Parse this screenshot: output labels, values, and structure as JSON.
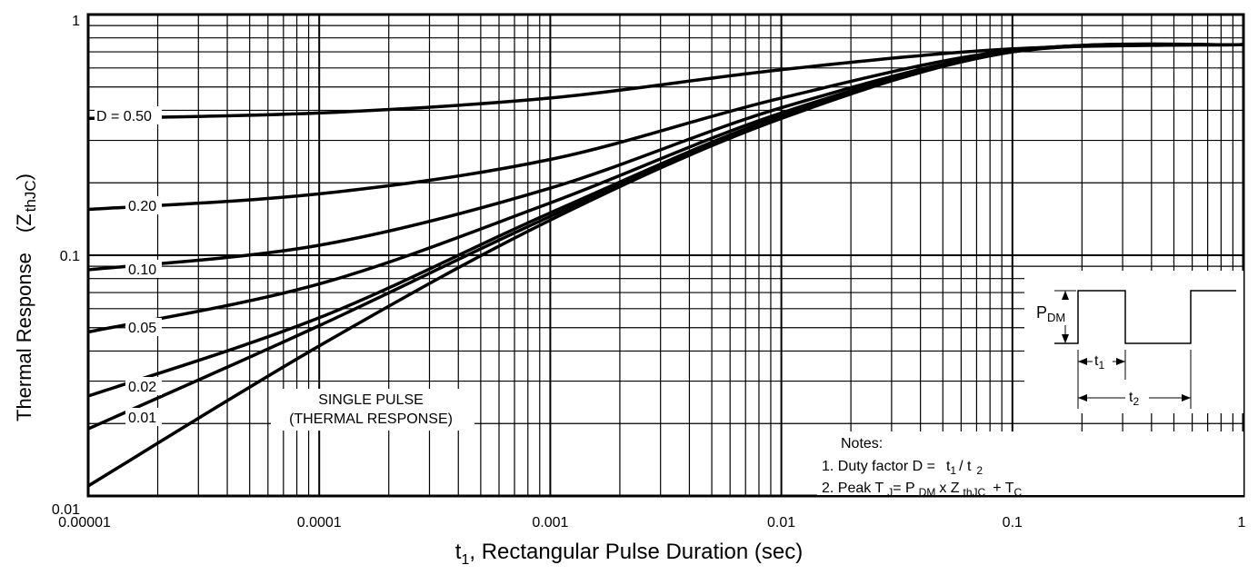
{
  "chart_data": {
    "type": "line",
    "x_scale": "log",
    "y_scale": "log",
    "xlim": [
      1e-05,
      1
    ],
    "ylim": [
      0.01,
      1
    ],
    "grid": true,
    "xlabel_main": "t",
    "xlabel_sub": "1",
    "xlabel_rest": ", Rectangular Pulse Duration (sec)",
    "ylabel": "Thermal Response",
    "ylabel_unit_main": "(Z",
    "ylabel_unit_sub": "thJC",
    "ylabel_unit_close": ")",
    "x_ticks": [
      {
        "value": 1e-05,
        "label": "0.00001"
      },
      {
        "value": 0.0001,
        "label": "0.0001"
      },
      {
        "value": 0.001,
        "label": "0.001"
      },
      {
        "value": 0.01,
        "label": "0.01"
      },
      {
        "value": 0.1,
        "label": "0.1"
      },
      {
        "value": 1,
        "label": "1"
      }
    ],
    "y_ticks": [
      {
        "value": 0.01,
        "label": "0.01"
      },
      {
        "value": 0.1,
        "label": "0.1"
      },
      {
        "value": 1,
        "label": "1"
      }
    ],
    "series": [
      {
        "name": "D = 0.50",
        "label": "D = 0.50",
        "x": [
          1e-05,
          0.0001,
          0.001,
          0.01,
          0.1,
          1
        ],
        "y": [
          0.37,
          0.39,
          0.45,
          0.59,
          0.72,
          0.75
        ]
      },
      {
        "name": "0.20",
        "label": "0.20",
        "x": [
          1e-05,
          0.0001,
          0.001,
          0.01,
          0.1,
          1
        ],
        "y": [
          0.155,
          0.18,
          0.25,
          0.45,
          0.71,
          0.75
        ]
      },
      {
        "name": "0.10",
        "label": "0.10",
        "x": [
          1e-05,
          0.0001,
          0.001,
          0.01,
          0.1,
          1
        ],
        "y": [
          0.087,
          0.11,
          0.19,
          0.41,
          0.7,
          0.75
        ]
      },
      {
        "name": "0.05",
        "label": "0.05",
        "x": [
          1e-05,
          0.0001,
          0.001,
          0.01,
          0.1,
          1
        ],
        "y": [
          0.048,
          0.076,
          0.165,
          0.39,
          0.7,
          0.75
        ]
      },
      {
        "name": "0.02",
        "label": "0.02",
        "x": [
          1e-05,
          0.0001,
          0.001,
          0.01,
          0.1,
          1
        ],
        "y": [
          0.026,
          0.055,
          0.15,
          0.38,
          0.7,
          0.75
        ]
      },
      {
        "name": "0.01",
        "label": "0.01",
        "x": [
          1e-05,
          0.0001,
          0.001,
          0.01,
          0.1,
          1
        ],
        "y": [
          0.019,
          0.051,
          0.145,
          0.375,
          0.7,
          0.75
        ]
      },
      {
        "name": "SINGLE PULSE",
        "label": "",
        "x": [
          1e-05,
          0.0001,
          0.001,
          0.01,
          0.1,
          1
        ],
        "y": [
          0.011,
          0.042,
          0.14,
          0.37,
          0.7,
          0.75
        ]
      }
    ],
    "annotations": {
      "single_pulse_line1": "SINGLE PULSE",
      "single_pulse_line2": "(THERMAL RESPONSE)",
      "waveform_p_main": "P",
      "waveform_p_sub": "DM",
      "waveform_t1_main": "t",
      "waveform_t1_sub": "1",
      "waveform_t2_main": "t",
      "waveform_t2_sub": "2",
      "notes_title": "Notes:",
      "note1_prefix": "1. Duty factor D =",
      "note1_t1": "t",
      "note1_t1_sub": "1",
      "note1_slash": "/ t",
      "note1_t2_sub": "2",
      "note2_prefix": "2. Peak T",
      "note2_tj_sub": "J",
      "note2_eq": "= P",
      "note2_pdm_sub": "DM",
      "note2_x": "x Z",
      "note2_z_sub": "thJC",
      "note2_plus": "+ T",
      "note2_tc_sub": "C"
    }
  }
}
